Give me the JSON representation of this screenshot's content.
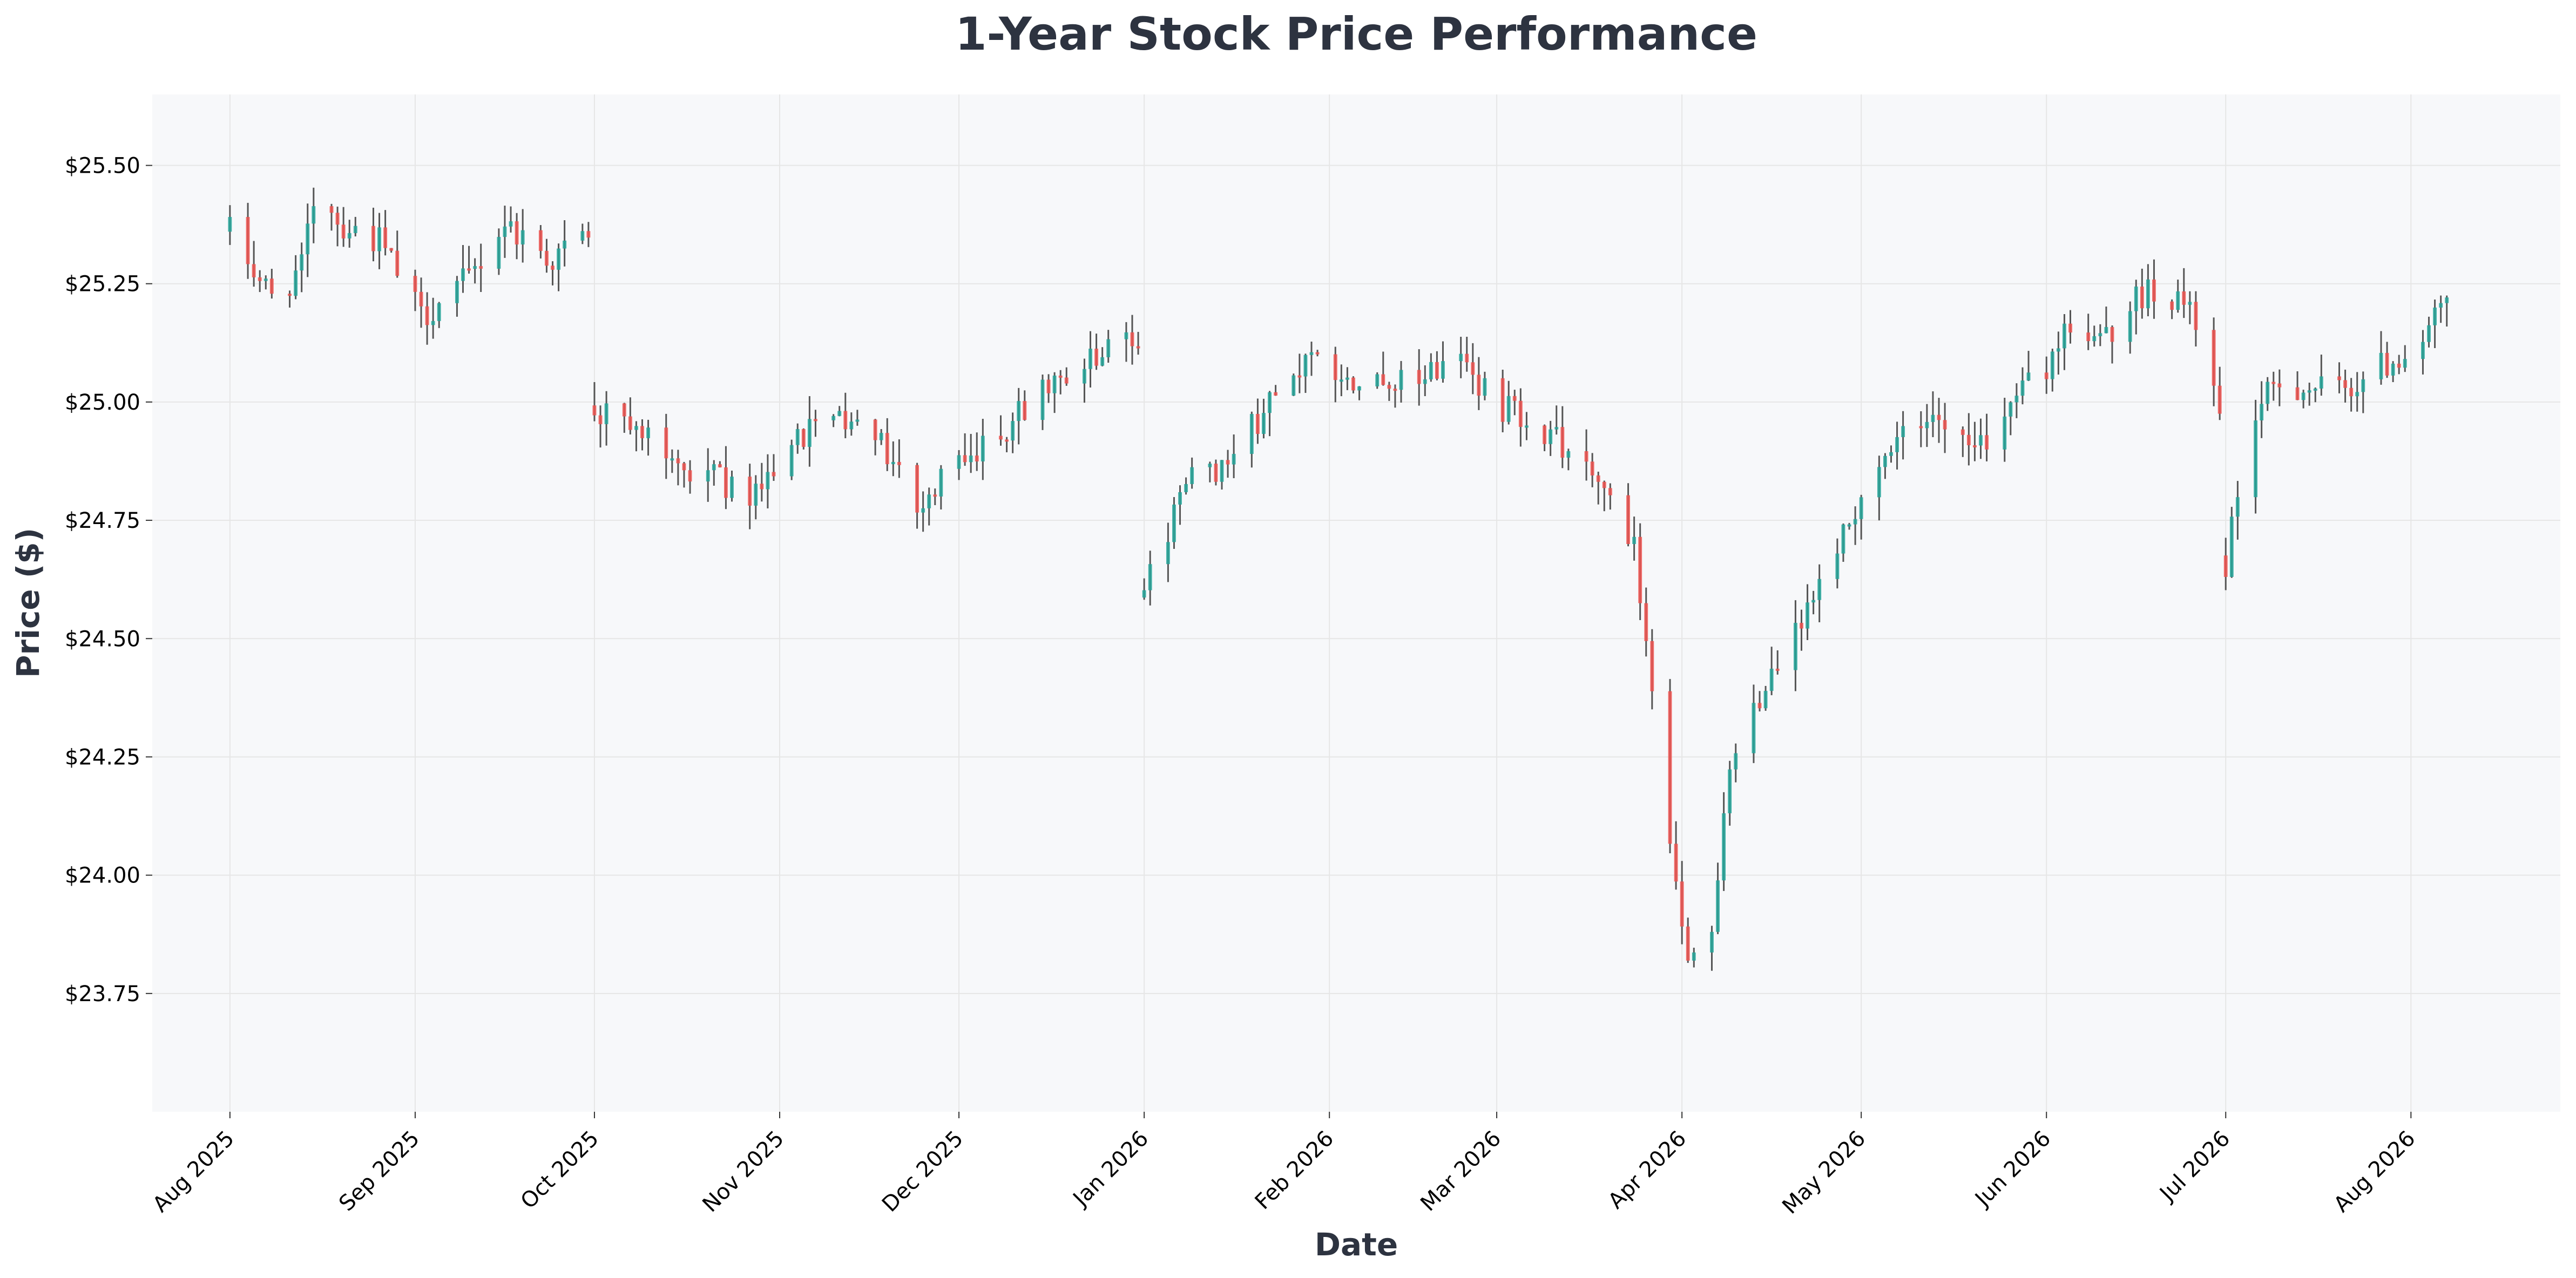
{
  "chart_data": {
    "type": "candlestick",
    "title": "1-Year Stock Price Performance",
    "xlabel": "Date",
    "ylabel": "Price ($)",
    "grid": true,
    "legend": "none",
    "colors": {
      "up": "#26a69a",
      "down": "#ef5350",
      "wick": "#555555",
      "plot_bg": "#f7f8fa",
      "grid": "#e6e6e6"
    },
    "ylim": [
      23.5,
      25.65
    ],
    "xlim": [
      "2025-07-19",
      "2026-08-26"
    ],
    "y_ticks": [
      {
        "value": 23.75,
        "label": "$23.75"
      },
      {
        "value": 24.0,
        "label": "$24.00"
      },
      {
        "value": 24.25,
        "label": "$24.25"
      },
      {
        "value": 24.5,
        "label": "$24.50"
      },
      {
        "value": 24.75,
        "label": "$24.75"
      },
      {
        "value": 25.0,
        "label": "$25.00"
      },
      {
        "value": 25.25,
        "label": "$25.25"
      },
      {
        "value": 25.5,
        "label": "$25.50"
      }
    ],
    "x_ticks": [
      {
        "date": "2025-08-01",
        "label": "Aug 2025"
      },
      {
        "date": "2025-09-01",
        "label": "Sep 2025"
      },
      {
        "date": "2025-10-01",
        "label": "Oct 2025"
      },
      {
        "date": "2025-11-01",
        "label": "Nov 2025"
      },
      {
        "date": "2025-12-01",
        "label": "Dec 2025"
      },
      {
        "date": "2026-01-01",
        "label": "Jan 2026"
      },
      {
        "date": "2026-02-01",
        "label": "Feb 2026"
      },
      {
        "date": "2026-03-01",
        "label": "Mar 2026"
      },
      {
        "date": "2026-04-01",
        "label": "Apr 2026"
      },
      {
        "date": "2026-05-01",
        "label": "May 2026"
      },
      {
        "date": "2026-06-01",
        "label": "Jun 2026"
      },
      {
        "date": "2026-07-01",
        "label": "Jul 2026"
      },
      {
        "date": "2026-08-01",
        "label": "Aug 2026"
      }
    ],
    "anchors": [
      [
        "2025-08-01",
        25.36
      ],
      [
        "2025-08-08",
        25.22
      ],
      [
        "2025-08-13",
        25.28
      ],
      [
        "2025-08-16",
        25.5
      ],
      [
        "2025-08-19",
        25.38
      ],
      [
        "2025-08-26",
        25.34
      ],
      [
        "2025-09-02",
        25.18
      ],
      [
        "2025-09-10",
        25.26
      ],
      [
        "2025-09-16",
        25.38
      ],
      [
        "2025-09-20",
        25.34
      ],
      [
        "2025-09-24",
        25.3
      ],
      [
        "2025-09-30",
        25.36
      ],
      [
        "2025-10-01",
        24.98
      ],
      [
        "2025-10-08",
        24.95
      ],
      [
        "2025-10-14",
        24.86
      ],
      [
        "2025-10-20",
        24.85
      ],
      [
        "2025-10-27",
        24.8
      ],
      [
        "2025-11-03",
        24.92
      ],
      [
        "2025-11-10",
        24.98
      ],
      [
        "2025-11-18",
        24.92
      ],
      [
        "2025-11-25",
        24.78
      ],
      [
        "2025-12-01",
        24.88
      ],
      [
        "2025-12-06",
        24.92
      ],
      [
        "2025-12-15",
        25.02
      ],
      [
        "2025-12-22",
        25.07
      ],
      [
        "2025-12-30",
        25.14
      ],
      [
        "2026-01-01",
        24.6
      ],
      [
        "2026-01-08",
        24.82
      ],
      [
        "2026-01-17",
        24.9
      ],
      [
        "2026-01-25",
        25.08
      ],
      [
        "2026-02-03",
        25.06
      ],
      [
        "2026-02-14",
        25.05
      ],
      [
        "2026-02-24",
        25.08
      ],
      [
        "2026-03-01",
        25.0
      ],
      [
        "2026-03-08",
        24.95
      ],
      [
        "2026-03-16",
        24.85
      ],
      [
        "2026-03-24",
        24.7
      ],
      [
        "2026-03-28",
        24.28
      ],
      [
        "2026-04-02",
        23.82
      ],
      [
        "2026-04-06",
        23.86
      ],
      [
        "2026-04-08",
        24.14
      ],
      [
        "2026-04-12",
        24.35
      ],
      [
        "2026-04-20",
        24.5
      ],
      [
        "2026-04-26",
        24.66
      ],
      [
        "2026-05-03",
        24.86
      ],
      [
        "2026-05-12",
        24.96
      ],
      [
        "2026-05-22",
        24.92
      ],
      [
        "2026-06-01",
        25.08
      ],
      [
        "2026-06-04",
        25.16
      ],
      [
        "2026-06-10",
        25.12
      ],
      [
        "2026-06-18",
        25.24
      ],
      [
        "2026-06-24",
        25.22
      ],
      [
        "2026-06-30",
        25.0
      ],
      [
        "2026-07-01",
        24.66
      ],
      [
        "2026-07-05",
        24.96
      ],
      [
        "2026-07-10",
        25.04
      ],
      [
        "2026-07-20",
        25.02
      ],
      [
        "2026-08-02",
        25.12
      ],
      [
        "2026-08-07",
        25.2
      ]
    ],
    "gaps": [
      [
        "2025-10-01",
        0.26
      ],
      [
        "2026-01-01",
        0.22
      ],
      [
        "2026-07-01",
        0.3
      ]
    ]
  }
}
